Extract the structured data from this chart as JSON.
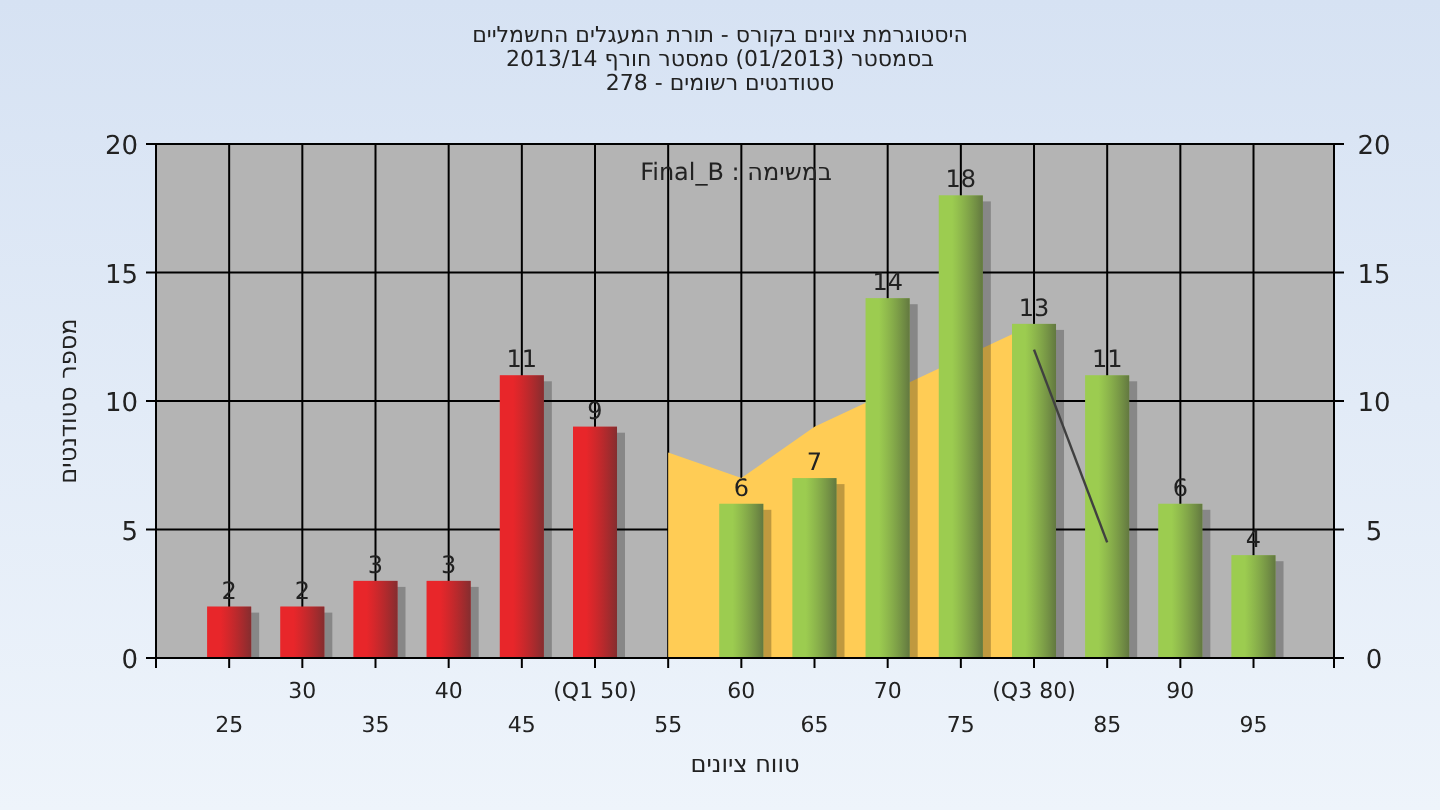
{
  "chart_data": {
    "type": "bar",
    "title": "היסטוגרמת ציונים בקורס - תורת המעגלים החשמליים",
    "subtitle": "בסמסטר (01/2013) סמסטר חורף 2013/14\nסטודנטים רשומים - 278",
    "xlabel": "טווח ציונים",
    "ylabel": "מספר סטודנטים",
    "annotations": [
      "במשימה : Final_B"
    ],
    "categories": [
      "25",
      "30",
      "35",
      "40",
      "45",
      "(Q1 50)",
      "55",
      "60",
      "65",
      "70",
      "75",
      "(Q3 80)",
      "85",
      "90",
      "95"
    ],
    "series": [
      {
        "colors": [
          "#e8262a",
          "#e8262a",
          "#e8262a",
          "#e8262a",
          "#e8262a",
          "#e8262a",
          "#e8262a",
          "#9ccc50",
          "#9ccc50",
          "#9ccc50",
          "#9ccc50",
          "#9ccc50",
          "#9ccc50",
          "#9ccc50",
          "#9ccc50"
        ],
        "values": [
          2,
          2,
          3,
          3,
          11,
          9,
          null,
          6,
          7,
          14,
          18,
          13,
          11,
          6,
          4
        ],
        "value_labels": [
          "2",
          "2",
          "3",
          "3",
          "11",
          "9",
          null,
          "6",
          "7",
          "14",
          "18",
          "13",
          "11",
          "6",
          "4"
        ]
      },
      {
        "type": "area",
        "color": "#ffcc55",
        "values": [
          null,
          null,
          null,
          null,
          null,
          null,
          8,
          7,
          9,
          null,
          null,
          13,
          null,
          null,
          null
        ]
      },
      {
        "type": "line",
        "color": "#404040",
        "values": [
          null,
          null,
          null,
          null,
          null,
          null,
          null,
          null,
          null,
          null,
          null,
          12,
          4.5,
          null,
          null
        ]
      }
    ],
    "ylim": [
      0,
      20
    ],
    "yticks": [
      0,
      5,
      10,
      15,
      20
    ],
    "y2lim": [
      0,
      20
    ],
    "y2ticks": [
      0,
      5,
      10,
      15,
      20
    ],
    "grid": true
  }
}
